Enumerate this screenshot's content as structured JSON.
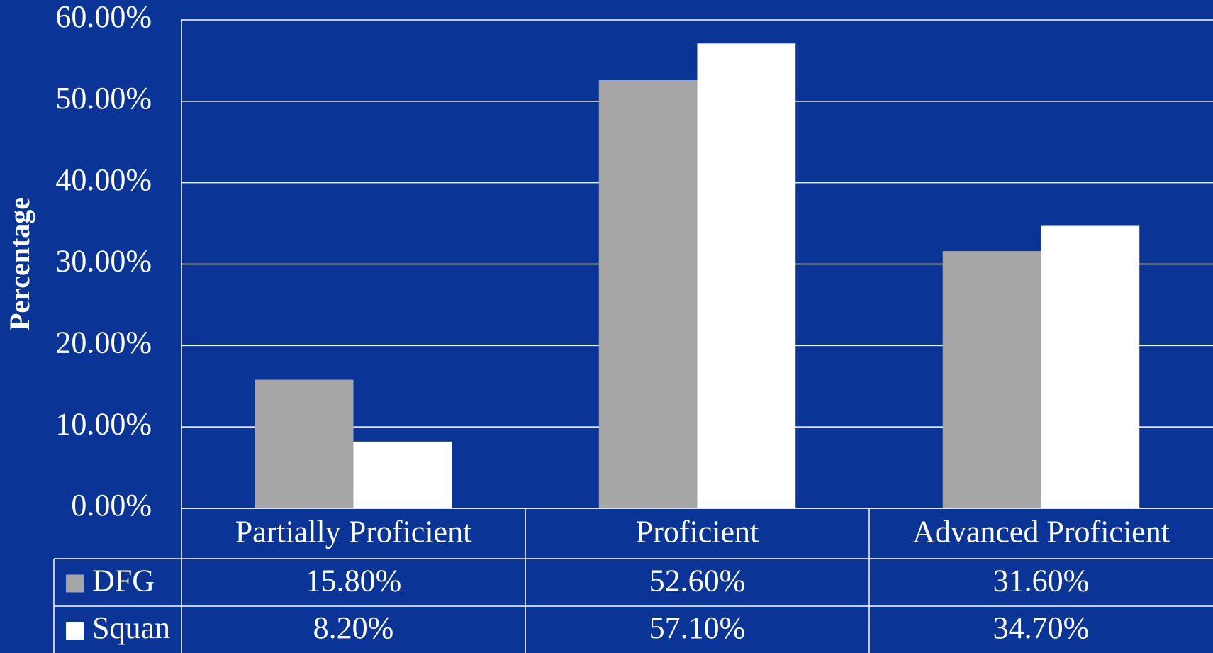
{
  "chart_data": {
    "type": "bar",
    "y_label": "Percentage",
    "categories": [
      "Partially Proficient",
      "Proficient",
      "Advanced Proficient"
    ],
    "series": [
      {
        "name": "DFG",
        "color": "#a6a6a6",
        "values": [
          15.8,
          52.6,
          31.6
        ],
        "value_labels": [
          "15.80%",
          "52.60%",
          "31.60%"
        ]
      },
      {
        "name": "Squan",
        "color": "#ffffff",
        "values": [
          8.2,
          57.1,
          34.7
        ],
        "value_labels": [
          "8.20%",
          "57.10%",
          "34.70%"
        ]
      }
    ],
    "ylim": [
      0,
      60
    ],
    "yticks": [
      {
        "value": 0,
        "label": "0.00%"
      },
      {
        "value": 10,
        "label": "10.00%"
      },
      {
        "value": 20,
        "label": "20.00%"
      },
      {
        "value": 30,
        "label": "30.00%"
      },
      {
        "value": 40,
        "label": "40.00%"
      },
      {
        "value": 50,
        "label": "50.00%"
      },
      {
        "value": 60,
        "label": "60.00%"
      }
    ],
    "grid": true
  }
}
